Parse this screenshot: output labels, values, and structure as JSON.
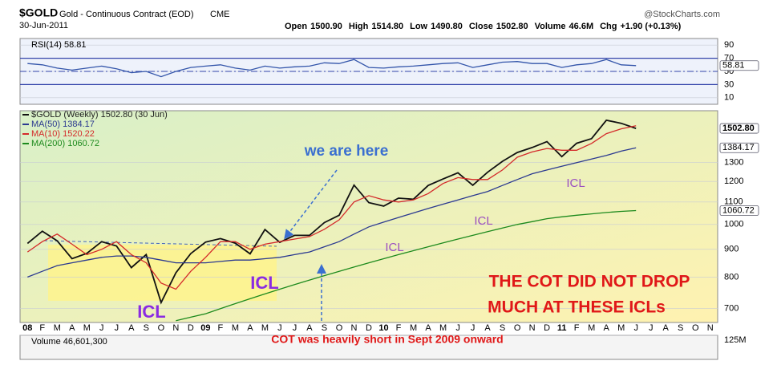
{
  "header": {
    "symbol": "$GOLD",
    "name": "Gold - Continuous Contract (EOD)",
    "exchange": "CME",
    "date": "30-Jun-2011",
    "quote": [
      "Open",
      "1500.90",
      "High",
      "1514.80",
      "Low",
      "1490.80",
      "Close",
      "1502.80",
      "Volume",
      "46.6M",
      "Chg",
      "+1.90 (+0.13%)"
    ],
    "source": "@StockCharts.com"
  },
  "annotations": {
    "here": "we are here",
    "icl": [
      "ICL",
      "ICL",
      "ICL",
      "ICL",
      "ICL"
    ],
    "cot": [
      "THE COT DID NOT DROP",
      "MUCH AT THESE ICLs"
    ],
    "cot_note": "COT was heavily short in Sept 2009 onward"
  },
  "chart_data": [
    {
      "type": "line",
      "title": "RSI(14) 58.81",
      "ylim": [
        0,
        100
      ],
      "yticks": [
        10,
        30,
        50,
        70,
        90
      ],
      "bands": [
        30,
        70
      ],
      "midline": 50,
      "tags": [
        {
          "value": 58.81,
          "label": "58.81"
        }
      ],
      "series": [
        {
          "name": "RSI(14)",
          "color": "#3355aa",
          "values": [
            62,
            60,
            55,
            52,
            55,
            58,
            54,
            48,
            50,
            42,
            50,
            56,
            58,
            60,
            55,
            52,
            58,
            55,
            57,
            58,
            63,
            62,
            68,
            56,
            55,
            57,
            58,
            60,
            62,
            63,
            56,
            60,
            64,
            65,
            62,
            62,
            56,
            60,
            62,
            68,
            60,
            58.81,
            null,
            null,
            null,
            null,
            null
          ]
        }
      ]
    },
    {
      "type": "line",
      "log": true,
      "ylim": [
        660,
        1620
      ],
      "yticks": [
        700,
        800,
        900,
        1000,
        1100,
        1200,
        1300
      ],
      "categories": [
        "08",
        "F",
        "M",
        "A",
        "M",
        "J",
        "J",
        "A",
        "S",
        "O",
        "N",
        "D",
        "09",
        "F",
        "M",
        "A",
        "M",
        "J",
        "J",
        "A",
        "S",
        "O",
        "N",
        "D",
        "10",
        "F",
        "M",
        "A",
        "M",
        "J",
        "J",
        "A",
        "S",
        "O",
        "N",
        "D",
        "11",
        "F",
        "M",
        "A",
        "M",
        "J",
        "J",
        "A",
        "S",
        "O",
        "N"
      ],
      "tags": [
        {
          "value": 1502.8,
          "label": "1502.80"
        },
        {
          "value": 1384.17,
          "label": "1384.17"
        },
        {
          "value": 1060.72,
          "label": "1060.72"
        }
      ],
      "series": [
        {
          "name": "$GOLD (Weekly) 1502.80 (30 Jun)",
          "color": "#111111",
          "values": [
            923,
            972,
            933,
            865,
            885,
            930,
            913,
            833,
            880,
            718,
            815,
            884,
            928,
            942,
            924,
            883,
            979,
            927,
            955,
            955,
            1008,
            1040,
            1182,
            1097,
            1081,
            1118,
            1113,
            1180,
            1213,
            1245,
            1181,
            1248,
            1307,
            1357,
            1386,
            1421,
            1333,
            1411,
            1439,
            1556,
            1536,
            1502.8,
            null,
            null,
            null,
            null,
            null
          ]
        },
        {
          "name": "MA(50) 1384.17",
          "color": "#2b3990",
          "values": [
            800,
            820,
            840,
            850,
            860,
            870,
            875,
            875,
            870,
            860,
            850,
            850,
            850,
            855,
            860,
            860,
            865,
            870,
            880,
            890,
            910,
            930,
            960,
            990,
            1010,
            1030,
            1050,
            1070,
            1090,
            1110,
            1130,
            1150,
            1180,
            1210,
            1240,
            1260,
            1280,
            1300,
            1320,
            1340,
            1365,
            1384.17,
            null,
            null,
            null,
            null,
            null
          ]
        },
        {
          "name": "MA(10) 1520.22",
          "color": "#d42a2a",
          "values": [
            890,
            930,
            960,
            920,
            880,
            900,
            930,
            880,
            850,
            780,
            760,
            820,
            870,
            930,
            930,
            900,
            920,
            930,
            940,
            950,
            980,
            1020,
            1100,
            1130,
            1110,
            1100,
            1110,
            1140,
            1190,
            1220,
            1210,
            1210,
            1260,
            1330,
            1360,
            1380,
            1370,
            1370,
            1410,
            1470,
            1500,
            1520.22,
            null,
            null,
            null,
            null,
            null
          ]
        },
        {
          "name": "MA(200) 1060.72",
          "color": "#1d8a1d",
          "values": [
            null,
            null,
            null,
            null,
            null,
            null,
            null,
            null,
            null,
            null,
            665,
            675,
            685,
            700,
            715,
            730,
            745,
            760,
            775,
            790,
            805,
            820,
            835,
            850,
            865,
            880,
            895,
            910,
            925,
            940,
            955,
            970,
            985,
            1000,
            1012,
            1025,
            1033,
            1040,
            1046,
            1052,
            1057,
            1060.72,
            null,
            null,
            null,
            null,
            null
          ]
        }
      ]
    },
    {
      "type": "bar",
      "title": "Volume 46,601,300",
      "ylim": [
        0,
        125000000
      ],
      "yticks": [
        {
          "value": 125000000,
          "label": "125M"
        }
      ],
      "series": []
    }
  ]
}
